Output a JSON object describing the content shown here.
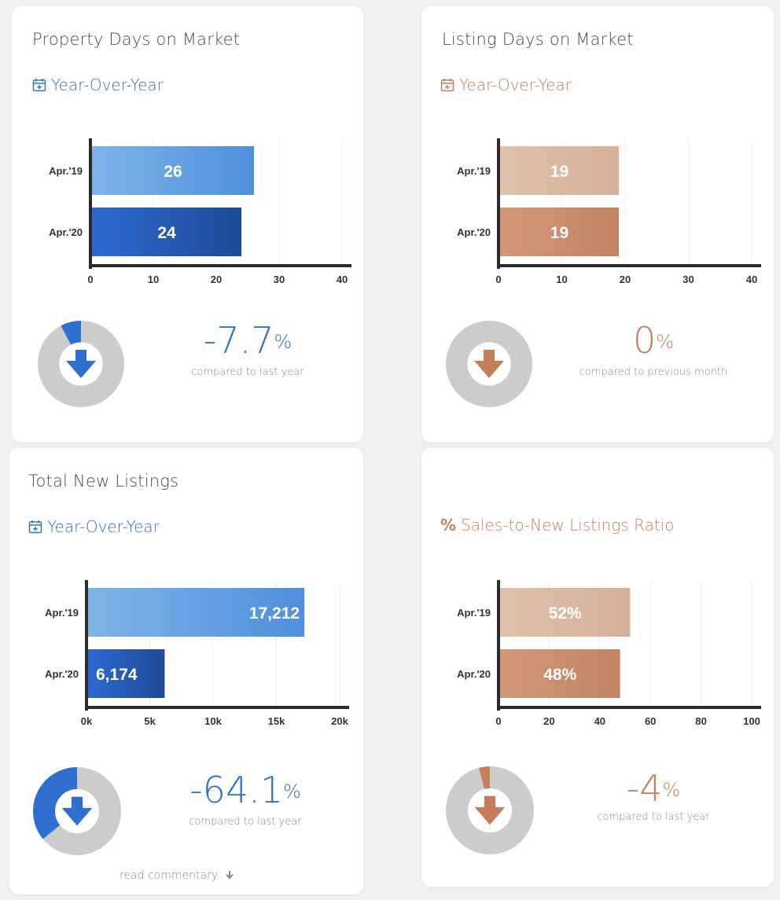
{
  "colors": {
    "blue_text": "#2f6fd0",
    "copper_text": "#c47f5a",
    "blue_bar_light": [
      "#7fb4e6",
      "#4f8fdc"
    ],
    "blue_bar_dark": [
      "#2d6ad0",
      "#1f4a96"
    ],
    "copper_bar_light": [
      "#dfc1ad",
      "#d6b19a"
    ],
    "copper_bar_dark": [
      "#d2987a",
      "#c28462"
    ],
    "donut_track": "#cccccc"
  },
  "cards": [
    {
      "title": "Property Days on Market",
      "subtitle": "Year-Over-Year",
      "subtitle_icon": "calendar-plus-icon",
      "theme": "blue",
      "percent_value": "-7.7",
      "percent_sign": "%",
      "comparison": "compared to last year",
      "donut_fraction": 0.077,
      "donut_icon": "arrow-down-icon"
    },
    {
      "title": "Listing Days on Market",
      "subtitle": "Year-Over-Year",
      "subtitle_icon": "calendar-plus-icon",
      "theme": "copper",
      "percent_value": "0",
      "percent_sign": "%",
      "comparison": "compared to previous month",
      "donut_fraction": 0,
      "donut_icon": "arrow-down-icon"
    },
    {
      "title": "Total New Listings",
      "subtitle": "Year-Over-Year",
      "subtitle_icon": "calendar-plus-icon",
      "theme": "blue",
      "percent_value": "-64.1",
      "percent_sign": "%",
      "comparison": "compared to last year",
      "donut_fraction": 0.359,
      "donut_icon": "arrow-down-icon",
      "read_more": "read commentary"
    },
    {
      "title": "",
      "subtitle": "Sales-to-New Listings Ratio",
      "subtitle_icon": "percent-icon",
      "subtitle_glyph": "%",
      "theme": "copper",
      "percent_value": "-4",
      "percent_sign": "%",
      "comparison": "compared to last year",
      "donut_fraction": 0.04,
      "donut_icon": "arrow-down-icon"
    }
  ],
  "chart_data": [
    {
      "type": "bar",
      "orientation": "horizontal",
      "categories": [
        "Apr.'19",
        "Apr.'20"
      ],
      "values": [
        26,
        24
      ],
      "value_labels": [
        "26",
        "24"
      ],
      "xlim": [
        0,
        40
      ],
      "ticks": [
        0,
        10,
        20,
        30,
        40
      ],
      "tick_labels": [
        "0",
        "10",
        "20",
        "30",
        "40"
      ],
      "grid": true
    },
    {
      "type": "bar",
      "orientation": "horizontal",
      "categories": [
        "Apr.'19",
        "Apr.'20"
      ],
      "values": [
        19,
        19
      ],
      "value_labels": [
        "19",
        "19"
      ],
      "xlim": [
        0,
        40
      ],
      "ticks": [
        0,
        10,
        20,
        30,
        40
      ],
      "tick_labels": [
        "0",
        "10",
        "20",
        "30",
        "40"
      ],
      "grid": true
    },
    {
      "type": "bar",
      "orientation": "horizontal",
      "categories": [
        "Apr.'19",
        "Apr.'20"
      ],
      "values": [
        17212,
        6174
      ],
      "value_labels": [
        "17,212",
        "6,174"
      ],
      "xlim": [
        0,
        20000
      ],
      "ticks": [
        0,
        5000,
        10000,
        15000,
        20000
      ],
      "tick_labels": [
        "0k",
        "5k",
        "10k",
        "15k",
        "20k"
      ],
      "grid": true
    },
    {
      "type": "bar",
      "orientation": "horizontal",
      "categories": [
        "Apr.'19",
        "Apr.'20"
      ],
      "values": [
        52,
        48
      ],
      "value_labels": [
        "52%",
        "48%"
      ],
      "xlim": [
        0,
        100
      ],
      "ticks": [
        0,
        20,
        40,
        60,
        80,
        100
      ],
      "tick_labels": [
        "0",
        "20",
        "40",
        "60",
        "80",
        "100"
      ],
      "grid": true
    }
  ]
}
